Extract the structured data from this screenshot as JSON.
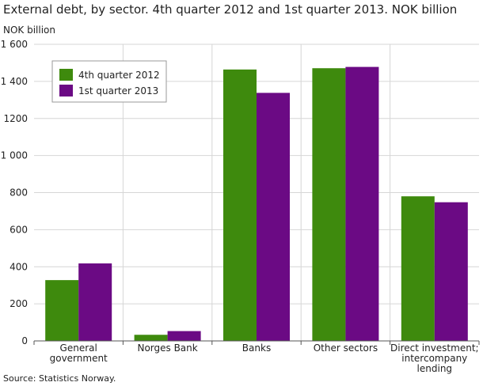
{
  "title": "External debt, by sector. 4th quarter 2012 and 1st quarter 2013. NOK billion",
  "unit_label": "NOK billion",
  "source": "Source: Statistics Norway.",
  "colors": {
    "series1": "#3e8a0d",
    "series2": "#6b0a84",
    "grid": "#d6d6d6",
    "axis": "#555555"
  },
  "chart_data": {
    "type": "bar",
    "categories": [
      [
        "General",
        "government"
      ],
      [
        "Norges Bank"
      ],
      [
        "Banks"
      ],
      [
        "Other sectors"
      ],
      [
        "Direct investment;",
        "intercompany",
        "lending"
      ]
    ],
    "series": [
      {
        "name": "4th quarter 2012",
        "values": [
          328,
          33,
          1464,
          1471,
          780
        ]
      },
      {
        "name": "1st quarter 2013",
        "values": [
          418,
          53,
          1338,
          1478,
          748
        ]
      }
    ],
    "ylim": [
      0,
      1600
    ],
    "yticks": [
      0,
      200,
      400,
      600,
      800,
      1000,
      1200,
      1400,
      1600
    ],
    "ytick_labels": [
      "0",
      "200",
      "400",
      "600",
      "800",
      "1 000",
      "1200",
      "1 400",
      "1 600"
    ],
    "ylabel": "NOK billion",
    "grid": true,
    "legend_position": "top-left"
  }
}
